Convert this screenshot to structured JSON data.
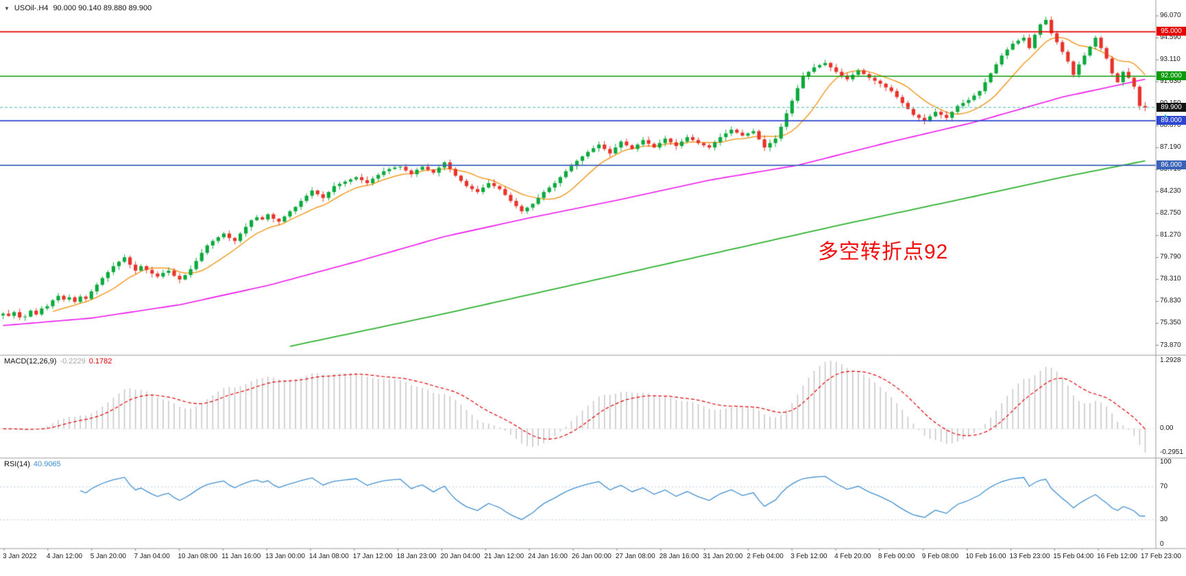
{
  "header": {
    "symbol_period": "USOil-.H4",
    "ohlc": "90.000 90.140 89.880 89.900"
  },
  "chart_data": {
    "type": "candlestick",
    "symbol": "USOil-",
    "timeframe": "H4",
    "title": "USOil-.H4 90.000 90.140 89.880 89.900",
    "ylim": [
      73.2,
      97.05
    ],
    "y_ticks": [
      "96.070",
      "94.590",
      "93.110",
      "91.630",
      "90.150",
      "88.670",
      "87.190",
      "85.710",
      "84.230",
      "82.750",
      "81.270",
      "79.790",
      "78.310",
      "76.830",
      "75.350",
      "73.870"
    ],
    "x_labels": [
      "3 Jan 2022",
      "4 Jan 12:00",
      "5 Jan 20:00",
      "7 Jan 04:00",
      "10 Jan 08:00",
      "11 Jan 16:00",
      "13 Jan 00:00",
      "14 Jan 08:00",
      "17 Jan 12:00",
      "18 Jan 23:00",
      "20 Jan 04:00",
      "21 Jan 12:00",
      "24 Jan 16:00",
      "26 Jan 00:00",
      "27 Jan 08:00",
      "28 Jan 16:00",
      "31 Jan 20:00",
      "2 Feb 04:00",
      "3 Feb 12:00",
      "4 Feb 20:00",
      "8 Feb 00:00",
      "9 Feb 08:00",
      "10 Feb 16:00",
      "13 Feb 23:00",
      "15 Feb 04:00",
      "16 Feb 12:00",
      "17 Feb 23:00"
    ],
    "closes": [
      76.0,
      75.85,
      76.1,
      75.75,
      75.8,
      76.2,
      75.95,
      76.35,
      76.5,
      76.9,
      77.2,
      76.95,
      77.1,
      76.8,
      77.15,
      77.0,
      77.5,
      77.95,
      78.4,
      78.8,
      79.2,
      79.5,
      79.8,
      79.3,
      78.9,
      79.2,
      78.95,
      78.7,
      78.5,
      78.75,
      78.9,
      78.55,
      78.3,
      78.6,
      79.0,
      79.55,
      80.1,
      80.6,
      80.9,
      81.15,
      81.4,
      81.1,
      80.9,
      81.4,
      81.85,
      82.3,
      82.5,
      82.35,
      82.7,
      82.4,
      82.2,
      82.55,
      82.9,
      83.2,
      83.6,
      83.95,
      84.3,
      84.05,
      83.8,
      84.2,
      84.6,
      84.75,
      84.9,
      85.05,
      85.2,
      85.0,
      84.8,
      85.1,
      85.35,
      85.6,
      85.75,
      85.85,
      85.9,
      85.65,
      85.4,
      85.7,
      85.9,
      85.7,
      85.5,
      85.85,
      86.2,
      85.75,
      85.3,
      84.95,
      84.6,
      84.4,
      84.2,
      84.5,
      84.8,
      84.6,
      84.4,
      84.0,
      83.6,
      83.25,
      82.9,
      83.15,
      83.4,
      83.8,
      84.2,
      84.5,
      84.8,
      85.2,
      85.6,
      85.95,
      86.3,
      86.6,
      86.9,
      87.15,
      87.4,
      87.1,
      86.8,
      87.2,
      87.6,
      87.35,
      87.1,
      87.4,
      87.7,
      87.45,
      87.2,
      87.5,
      87.8,
      87.55,
      87.3,
      87.6,
      87.9,
      87.7,
      87.5,
      87.35,
      87.2,
      87.55,
      87.9,
      88.15,
      88.4,
      88.2,
      88.0,
      88.15,
      88.3,
      87.75,
      87.2,
      87.5,
      87.8,
      88.6,
      89.5,
      90.35,
      91.2,
      92.0,
      92.3,
      92.6,
      92.75,
      92.9,
      92.6,
      92.3,
      92.05,
      91.8,
      92.1,
      92.4,
      92.15,
      91.9,
      91.7,
      91.5,
      91.25,
      91.0,
      90.6,
      90.2,
      89.8,
      89.4,
      89.2,
      89.0,
      89.3,
      89.6,
      89.4,
      89.2,
      89.6,
      90.0,
      90.2,
      90.4,
      90.7,
      91.0,
      91.6,
      92.2,
      92.8,
      93.4,
      93.8,
      94.2,
      94.4,
      94.6,
      93.9,
      94.8,
      95.5,
      95.8,
      94.9,
      94.3,
      93.65,
      93.0,
      92.1,
      92.8,
      93.4,
      94.0,
      94.6,
      93.9,
      93.2,
      92.2,
      91.6,
      92.3,
      91.9,
      91.3,
      90.0,
      89.9
    ],
    "last_bar": {
      "open": 90.0,
      "high": 90.14,
      "low": 89.88,
      "close": 89.9
    },
    "current_price": {
      "value": 89.9,
      "label": "89.900",
      "badge_color": "#111111",
      "line_color": "#4ab5ae"
    },
    "horizontal_lines": [
      {
        "price": 95.0,
        "label": "95.000",
        "color": "#e60000"
      },
      {
        "price": 92.0,
        "label": "92.000",
        "color": "#0a9a0a"
      },
      {
        "price": 89.0,
        "label": "89.000",
        "color": "#2d46d2"
      },
      {
        "price": 86.0,
        "label": "86.000",
        "color": "#3a62b8"
      }
    ],
    "moving_averages": {
      "fast": {
        "period": 10,
        "color": "#f59a23"
      },
      "medium": {
        "color": "#ef12ef",
        "waypoints": [
          [
            0,
            75.2
          ],
          [
            16,
            75.7
          ],
          [
            32,
            76.6
          ],
          [
            48,
            77.9
          ],
          [
            64,
            79.5
          ],
          [
            80,
            81.2
          ],
          [
            96,
            82.5
          ],
          [
            112,
            83.7
          ],
          [
            128,
            85.0
          ],
          [
            144,
            86.0
          ],
          [
            160,
            87.5
          ],
          [
            176,
            88.9
          ],
          [
            192,
            90.6
          ],
          [
            207,
            91.8
          ]
        ]
      },
      "slow": {
        "color": "#2db12d",
        "waypoints": [
          [
            52,
            73.8
          ],
          [
            80,
            76.0
          ],
          [
            104,
            78.0
          ],
          [
            128,
            80.0
          ],
          [
            152,
            82.0
          ],
          [
            176,
            83.9
          ],
          [
            192,
            85.2
          ],
          [
            207,
            86.3
          ]
        ]
      }
    },
    "colors": {
      "bullish": "#0caa3c",
      "bearish": "#e8332a",
      "macd_histogram": "#c8c8c8",
      "macd_signal": "#e60000",
      "rsi_line": "#3f8fd2",
      "rsi_levels": "#b9c6da"
    },
    "indicators": {
      "macd": {
        "label": "MACD(12,26,9)",
        "params": [
          12,
          26,
          9
        ],
        "value_main": "-0.2229",
        "value_signal": "0.1782",
        "axis_labels": [
          "1.2928",
          "0.00",
          "-0.2951"
        ]
      },
      "rsi": {
        "label": "RSI(14)",
        "value": "40.9065",
        "levels": [
          70,
          30
        ],
        "axis_labels": [
          "100",
          "70",
          "30",
          "0"
        ]
      }
    },
    "annotation": {
      "text": "多空转折点92",
      "color": "#f20d0d"
    }
  }
}
